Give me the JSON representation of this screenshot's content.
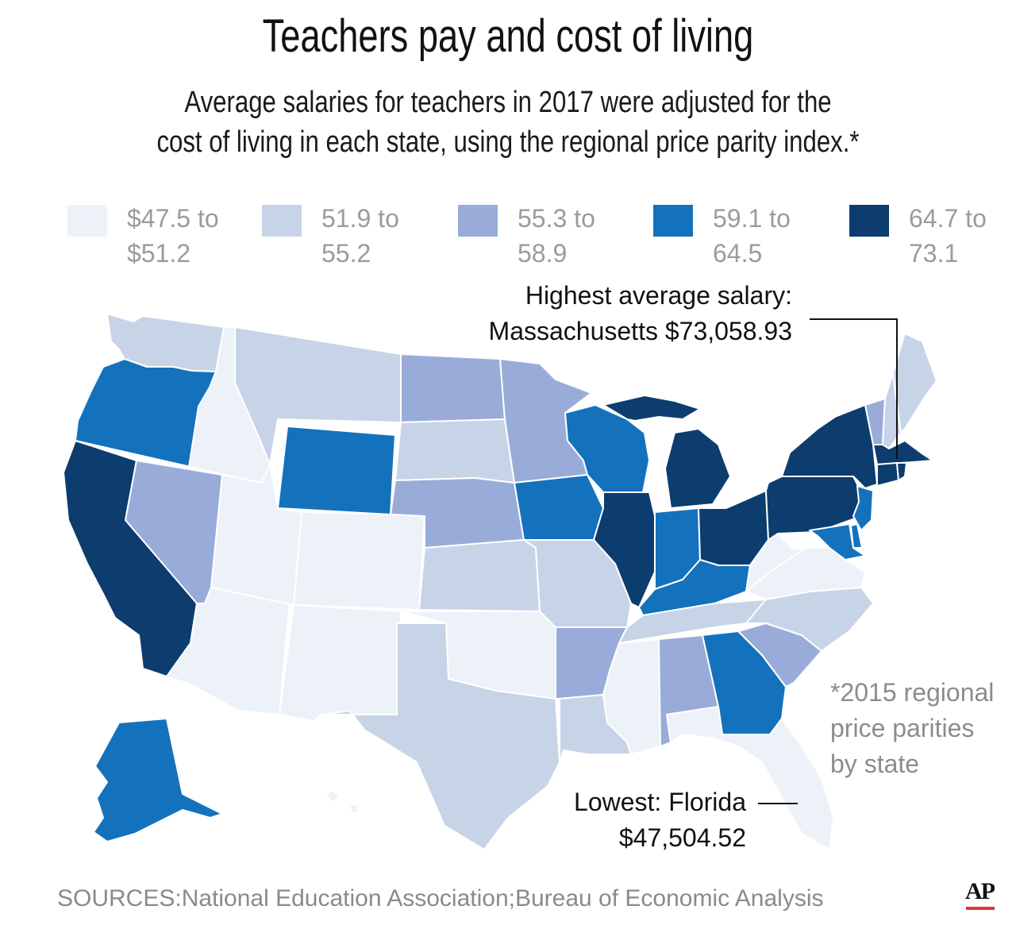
{
  "title": "Teachers pay and cost of living",
  "subtitle": {
    "line1": "Average salaries for teachers in 2017 were adjusted for the",
    "line2": "cost of living in each state, using the regional price parity index.*"
  },
  "legend": [
    {
      "line1": "$47.5 to",
      "line2": "$51.2",
      "color": "#edf1f8"
    },
    {
      "line1": "51.9 to",
      "line2": "55.2",
      "color": "#c7d3e7"
    },
    {
      "line1": "55.3 to",
      "line2": "58.9",
      "color": "#99acd9"
    },
    {
      "line1": "59.1 to",
      "line2": "64.5",
      "color": "#1472bd"
    },
    {
      "line1": "64.7 to",
      "line2": "73.1",
      "color": "#0d3c6e"
    }
  ],
  "callouts": {
    "highest": {
      "line1": "Highest average salary:",
      "line2": "Massachusetts $73,058.93"
    },
    "lowest": {
      "line1": "Lowest: Florida",
      "line2": "$47,504.52"
    }
  },
  "footnote": {
    "line1": "*2015 regional",
    "line2": "price parities",
    "line3": "by state"
  },
  "source": "SOURCES:National Education Association;Bureau of Economic Analysis",
  "logo": "AP",
  "map_data": {
    "type": "choropleth",
    "unit": "thousand dollars",
    "states": [
      {
        "state": "WA",
        "bin": 1
      },
      {
        "state": "OR",
        "bin": 3
      },
      {
        "state": "CA",
        "bin": 4
      },
      {
        "state": "ID",
        "bin": 0
      },
      {
        "state": "NV",
        "bin": 2
      },
      {
        "state": "AZ",
        "bin": 0
      },
      {
        "state": "UT",
        "bin": 0
      },
      {
        "state": "MT",
        "bin": 1
      },
      {
        "state": "WY",
        "bin": 3
      },
      {
        "state": "CO",
        "bin": 0
      },
      {
        "state": "NM",
        "bin": 0
      },
      {
        "state": "ND",
        "bin": 2
      },
      {
        "state": "SD",
        "bin": 1
      },
      {
        "state": "NE",
        "bin": 2
      },
      {
        "state": "KS",
        "bin": 1
      },
      {
        "state": "OK",
        "bin": 0
      },
      {
        "state": "TX",
        "bin": 1
      },
      {
        "state": "MN",
        "bin": 2
      },
      {
        "state": "IA",
        "bin": 3
      },
      {
        "state": "MO",
        "bin": 1
      },
      {
        "state": "AR",
        "bin": 2
      },
      {
        "state": "LA",
        "bin": 1
      },
      {
        "state": "WI",
        "bin": 3
      },
      {
        "state": "IL",
        "bin": 4
      },
      {
        "state": "MI",
        "bin": 4
      },
      {
        "state": "IN",
        "bin": 3
      },
      {
        "state": "OH",
        "bin": 4
      },
      {
        "state": "KY",
        "bin": 3
      },
      {
        "state": "TN",
        "bin": 1
      },
      {
        "state": "MS",
        "bin": 0
      },
      {
        "state": "AL",
        "bin": 2
      },
      {
        "state": "GA",
        "bin": 3
      },
      {
        "state": "FL",
        "bin": 0
      },
      {
        "state": "SC",
        "bin": 2
      },
      {
        "state": "NC",
        "bin": 1
      },
      {
        "state": "VA",
        "bin": 0
      },
      {
        "state": "WV",
        "bin": 0
      },
      {
        "state": "PA",
        "bin": 4
      },
      {
        "state": "NY",
        "bin": 4
      },
      {
        "state": "VT",
        "bin": 2
      },
      {
        "state": "NH",
        "bin": 1
      },
      {
        "state": "ME",
        "bin": 1
      },
      {
        "state": "MA",
        "bin": 4
      },
      {
        "state": "CT",
        "bin": 4
      },
      {
        "state": "RI",
        "bin": 4
      },
      {
        "state": "NJ",
        "bin": 3
      },
      {
        "state": "DE",
        "bin": 3
      },
      {
        "state": "MD",
        "bin": 3
      },
      {
        "state": "AK",
        "bin": 3
      },
      {
        "state": "HI",
        "bin": 0
      }
    ]
  }
}
